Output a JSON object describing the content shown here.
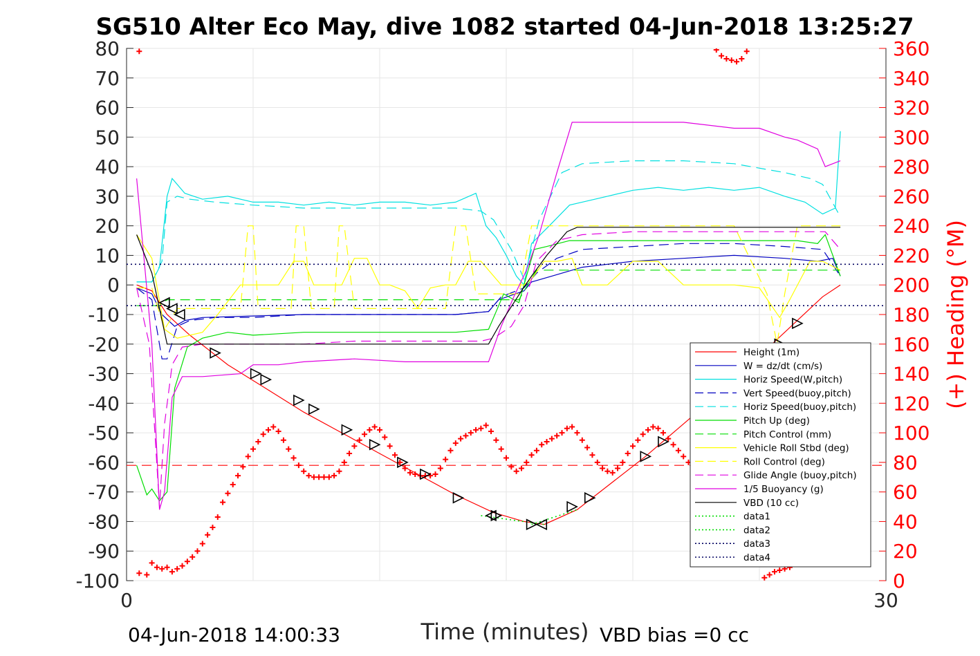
{
  "chart_data": {
    "type": "line",
    "title": "SG510 Alter Eco May, dive 1082 started 04-Jun-2018 13:25:27",
    "xlabel": "Time (minutes)",
    "ylabel_right": "(+) Heading (°M)",
    "footer_left": "04-Jun-2018 14:00:33",
    "footer_right": "VBD bias =0 cc",
    "xlim": [
      0,
      30
    ],
    "ylim": [
      -100,
      80
    ],
    "ylim_right": [
      0,
      360
    ],
    "x_ticks": [
      "0",
      "30"
    ],
    "y_ticks": [
      "80",
      "70",
      "60",
      "50",
      "40",
      "30",
      "20",
      "10",
      "0",
      "-10",
      "-20",
      "-30",
      "-40",
      "-50",
      "-60",
      "-70",
      "-80",
      "-90",
      "-100"
    ],
    "y_ticks_right": [
      "360",
      "340",
      "320",
      "300",
      "280",
      "260",
      "240",
      "220",
      "200",
      "180",
      "160",
      "140",
      "120",
      "100",
      "80",
      "60",
      "40",
      "20",
      "0"
    ],
    "grid": true,
    "legend_position": "bottom-right",
    "colors": {
      "height": "#ff0000",
      "w": "#0000c0",
      "horiz": "#00e0e0",
      "pitch": "#00dd00",
      "roll": "#ffff00",
      "glide": "#e000e0",
      "vbd": "#000000",
      "heading": "#ff0000"
    },
    "series": [
      {
        "name": "Height (1m)",
        "color": "#ff0000",
        "style": "solid",
        "x": [
          0.4,
          1.0,
          1.6,
          2.5,
          4,
          5.5,
          7,
          8.5,
          10,
          11.5,
          13,
          14.5,
          15.7,
          16.5,
          17.8,
          19,
          20.5,
          22,
          23.5,
          25,
          26.5,
          27.5,
          28.2
        ],
        "y": [
          0,
          -2,
          -10,
          -17,
          -27,
          -35,
          -43,
          -50,
          -57,
          -64,
          -71,
          -77,
          -80,
          -81,
          -76,
          -68,
          -58,
          -47,
          -36,
          -24,
          -12,
          -4,
          0
        ]
      },
      {
        "name": "W = dz/dt (cm/s)",
        "color": "#0000c0",
        "style": "solid",
        "x": [
          0.4,
          1.0,
          1.4,
          1.9,
          2.3,
          3,
          5,
          7,
          9,
          11,
          13,
          14.3,
          14.7,
          15.7,
          16,
          16.8,
          18,
          20,
          22,
          24,
          26,
          27.3,
          27.9,
          28.2
        ],
        "y": [
          -1,
          -3,
          -10,
          -14,
          -12,
          -11,
          -10.5,
          -10,
          -10,
          -10,
          -10,
          -9,
          -5,
          -2,
          1,
          3,
          6,
          8,
          9,
          10,
          9,
          8,
          9,
          3
        ]
      },
      {
        "name": "Horiz Speed(W,pitch)",
        "color": "#00e0e0",
        "style": "solid",
        "x": [
          0.4,
          1.0,
          1.3,
          1.6,
          1.8,
          2.3,
          3,
          4,
          5,
          6,
          7,
          8,
          9,
          10,
          11,
          12,
          13,
          13.8,
          14.2,
          14.6,
          15,
          15.4,
          15.7,
          16,
          16.7,
          17.5,
          18,
          19,
          20,
          21,
          22,
          23,
          24,
          25,
          26,
          26.8,
          27.5,
          28,
          28.2
        ],
        "y": [
          1,
          1,
          6,
          30,
          36,
          31,
          29,
          30,
          28,
          28,
          27,
          28,
          27,
          28,
          28,
          27,
          28,
          31,
          20,
          16,
          10,
          3,
          0,
          14,
          20,
          27,
          28,
          30,
          32,
          33,
          32,
          33,
          32,
          33,
          30,
          28,
          24,
          26,
          52
        ]
      },
      {
        "name": "Vert Speed(buoy,pitch)",
        "color": "#0000c0",
        "style": "dashed",
        "x": [
          0.4,
          1.0,
          1.4,
          1.6,
          2.0,
          2.5,
          3.5,
          5,
          7,
          9,
          11,
          13,
          14.3,
          14.8,
          15.7,
          16.2,
          17,
          18,
          20,
          22,
          24,
          26,
          27.5,
          28.2
        ],
        "y": [
          -1,
          -5,
          -25,
          -25,
          -14,
          -12,
          -11,
          -11,
          -10,
          -10,
          -10,
          -10,
          -9,
          -4,
          -1,
          4,
          9,
          12,
          13,
          14,
          14,
          13,
          12,
          3
        ]
      },
      {
        "name": "Horiz Speed(buoy,pitch)",
        "color": "#00e0e0",
        "style": "dashed",
        "x": [
          0.4,
          1.0,
          1.4,
          1.6,
          2.0,
          2.5,
          3.5,
          5,
          7,
          9,
          11,
          13,
          14,
          14.5,
          15.2,
          15.7,
          16.3,
          17.2,
          18,
          20,
          22,
          24,
          26,
          27,
          27.5,
          28.2
        ],
        "y": [
          1,
          1,
          8,
          28,
          30,
          29,
          28,
          27,
          26,
          26,
          26,
          26,
          25,
          22,
          12,
          2,
          22,
          38,
          41,
          42,
          42,
          41,
          38,
          36,
          34,
          23
        ]
      },
      {
        "name": "Pitch Up (deg)",
        "color": "#00dd00",
        "style": "solid",
        "x": [
          0.4,
          0.8,
          1.0,
          1.3,
          1.6,
          1.9,
          2.4,
          3,
          4,
          5,
          7,
          9,
          11,
          13,
          14.3,
          14.6,
          14.9,
          15.5,
          16.1,
          16.6,
          17.5,
          19,
          21,
          23,
          25,
          26.5,
          27.3,
          27.6,
          28.2
        ],
        "y": [
          -61,
          -71,
          -69,
          -73,
          -70,
          -35,
          -21,
          -18,
          -16,
          -17,
          -16,
          -16,
          -16,
          -16,
          -15,
          -9,
          -3,
          -6,
          12,
          13,
          15,
          15,
          15,
          15,
          15,
          15,
          14,
          17,
          3
        ]
      },
      {
        "name": "Pitch Control (mm)",
        "color": "#00dd00",
        "style": "dashed",
        "x": [
          0.4,
          1.3,
          1.6,
          14.8,
          15.5,
          16.2,
          28.2
        ],
        "y": [
          -7,
          -7,
          -5,
          -5,
          -5,
          5,
          5
        ]
      },
      {
        "name": "Vehicle Roll Stbd (deg)",
        "color": "#ffff00",
        "style": "solid",
        "x": [
          0.4,
          1.0,
          1.5,
          2.0,
          3,
          3.6,
          4.5,
          5.5,
          6,
          6.6,
          7,
          7.4,
          8,
          8.5,
          9,
          9.5,
          10,
          10.4,
          11,
          11.5,
          12,
          12.6,
          13,
          13.5,
          14,
          14.8,
          15.7,
          16,
          16.5,
          17,
          17.6,
          18,
          19,
          20,
          21,
          22,
          23,
          24,
          25,
          25.8,
          26.2,
          27,
          27.5,
          28.2
        ],
        "y": [
          17,
          9,
          -15,
          -18,
          -16,
          -10,
          0,
          0,
          0,
          8,
          8,
          0,
          0,
          0,
          9,
          9,
          0,
          0,
          -2,
          -8,
          -1,
          0,
          0,
          8,
          8,
          0,
          0,
          2,
          8,
          8,
          9,
          0,
          0,
          8,
          8,
          0,
          0,
          0,
          -1,
          -11,
          -5,
          8,
          8,
          5
        ]
      },
      {
        "name": "Roll Control (deg)",
        "color": "#ffff00",
        "style": "dashed",
        "x": [
          0.4,
          1.0,
          1.5,
          2.0,
          4.5,
          4.8,
          5,
          5.2,
          5.5,
          6.5,
          6.7,
          7,
          7.3,
          7.6,
          8.2,
          8.4,
          8.6,
          9,
          10,
          10.4,
          11,
          11.5,
          12,
          12.6,
          13,
          13.4,
          13.8,
          14,
          14.8,
          15.5,
          16,
          16.6,
          17,
          18,
          19,
          20,
          22,
          24,
          25.3,
          25.7,
          26,
          26.5,
          27,
          28.2
        ],
        "y": [
          -1,
          -1,
          -15,
          -8,
          -8,
          20,
          20,
          -8,
          -8,
          -8,
          20,
          20,
          -8,
          -8,
          -8,
          20,
          20,
          -8,
          -8,
          -8,
          -8,
          -8,
          -8,
          -8,
          20,
          20,
          -3,
          -3,
          -3,
          -3,
          20,
          20,
          20,
          20,
          20,
          20,
          20,
          20,
          -3,
          -20,
          -3,
          20,
          20,
          20
        ]
      },
      {
        "name": "Glide Angle (buoy,pitch)",
        "color": "#e000e0",
        "style": "dashed",
        "x": [
          0.4,
          0.9,
          1.3,
          1.5,
          1.8,
          2.2,
          3,
          5,
          7,
          9,
          11,
          13,
          14,
          14.5,
          15.2,
          15.7,
          16.2,
          17,
          18,
          20,
          22,
          24,
          26,
          27.6,
          28.2
        ],
        "y": [
          -1,
          -20,
          -75,
          -47,
          -27,
          -21,
          -20,
          -20,
          -20,
          -19,
          -19,
          -19,
          -19,
          -18,
          -14,
          -7,
          8,
          15,
          17,
          18,
          18,
          18,
          18,
          18,
          12
        ]
      },
      {
        "name": "1/5 Buoyancy (g)",
        "color": "#e000e0",
        "style": "solid",
        "x": [
          0.4,
          1.0,
          1.3,
          1.5,
          1.8,
          2.2,
          3,
          4.5,
          5,
          6,
          7,
          9,
          11,
          13,
          14.3,
          14.8,
          15.3,
          15.8,
          16.3,
          17,
          17.6,
          18,
          20,
          22,
          24,
          25,
          26,
          26.5,
          27.3,
          27.6,
          28.2
        ],
        "y": [
          36,
          -20,
          -76,
          -70,
          -38,
          -31,
          -31,
          -30,
          -27,
          -27,
          -26,
          -25,
          -26,
          -26,
          -26,
          -14,
          -4,
          5,
          17,
          38,
          55,
          55,
          55,
          55,
          53,
          53,
          50,
          49,
          46,
          40,
          42
        ]
      },
      {
        "name": "VBD (10 cc)",
        "color": "#000000",
        "style": "solid",
        "x": [
          0.4,
          1.0,
          1.3,
          1.6,
          14.3,
          14.7,
          15.6,
          16,
          16.6,
          17.4,
          17.8,
          18,
          28.2
        ],
        "y": [
          17,
          4,
          -8,
          -20,
          -20,
          -14,
          -2,
          3,
          10,
          18,
          19.5,
          19.5,
          19.5
        ]
      },
      {
        "name": "data1",
        "color": "#00dd00",
        "style": "dotted",
        "x": [
          14,
          16.5
        ],
        "y": [
          -78,
          -81
        ]
      },
      {
        "name": "data2",
        "color": "#00dd00",
        "style": "dotted",
        "x": [
          16,
          17.8
        ],
        "y": [
          -81,
          -76
        ]
      },
      {
        "name": "data3",
        "color": "#000060",
        "style": "dotted",
        "x": [
          0,
          30
        ],
        "y": [
          7,
          7
        ]
      },
      {
        "name": "data4",
        "color": "#000060",
        "style": "dotted",
        "x": [
          0,
          30
        ],
        "y": [
          -7,
          -7
        ]
      }
    ],
    "reference_lines": [
      {
        "color": "#ff0000",
        "style": "dashed",
        "y": -61
      }
    ],
    "triangle_markers": {
      "left": [
        [
          1.5,
          -6
        ],
        [
          1.8,
          -8
        ],
        [
          2.1,
          -10
        ],
        [
          14.4,
          -78
        ],
        [
          16.4,
          -81
        ]
      ],
      "right": [
        [
          3.5,
          -23
        ],
        [
          5.1,
          -30
        ],
        [
          5.5,
          -32
        ],
        [
          6.8,
          -39
        ],
        [
          7.4,
          -42
        ],
        [
          8.7,
          -49
        ],
        [
          9.8,
          -54
        ],
        [
          10.9,
          -60
        ],
        [
          11.8,
          -64
        ],
        [
          13.1,
          -72
        ],
        [
          14.6,
          -78
        ],
        [
          16.0,
          -81
        ],
        [
          17.6,
          -75
        ],
        [
          18.3,
          -72
        ],
        [
          20.5,
          -58
        ],
        [
          21.2,
          -53
        ],
        [
          24,
          -39
        ],
        [
          26.5,
          -13
        ],
        [
          25,
          -31
        ],
        [
          25.8,
          -20
        ]
      ]
    },
    "heading_series": {
      "axis": "right",
      "color": "#ff0000",
      "marker": "+",
      "x": [
        0.5,
        0.8,
        1.0,
        1.2,
        1.4,
        1.6,
        1.8,
        2.0,
        2.2,
        2.4,
        2.6,
        2.8,
        3.0,
        3.2,
        3.4,
        3.6,
        3.8,
        4.0,
        4.2,
        4.4,
        4.6,
        4.8,
        5.0,
        5.2,
        5.4,
        5.6,
        5.8,
        6.0,
        6.2,
        6.4,
        6.6,
        6.8,
        7.0,
        7.2,
        7.4,
        7.6,
        7.8,
        8.0,
        8.2,
        8.4,
        8.6,
        8.8,
        9.0,
        9.2,
        9.4,
        9.6,
        9.8,
        10.0,
        10.2,
        10.4,
        10.6,
        10.8,
        11.0,
        11.2,
        11.4,
        11.6,
        11.8,
        12.0,
        12.2,
        12.4,
        12.6,
        12.8,
        13.0,
        13.2,
        13.4,
        13.6,
        13.8,
        14.0,
        14.2,
        14.4,
        14.6,
        14.8,
        15.0,
        15.2,
        15.4,
        15.6,
        15.8,
        16.0,
        16.2,
        16.4,
        16.6,
        16.8,
        17.0,
        17.2,
        17.4,
        17.6,
        17.8,
        18.0,
        18.2,
        18.4,
        18.6,
        18.8,
        19.0,
        19.2,
        19.4,
        19.6,
        19.8,
        20.0,
        20.2,
        20.4,
        20.6,
        20.8,
        21.0,
        21.2,
        21.4,
        21.6,
        21.8,
        22.0,
        22.2,
        22.4,
        22.6,
        22.8,
        23.0,
        23.2,
        23.4,
        23.6,
        23.8,
        24.0,
        24.2,
        24.4,
        24.6,
        24.8,
        25.0,
        25.2,
        25.4,
        25.6,
        25.8,
        26.0,
        26.2,
        26.4,
        26.6,
        26.8,
        27.0,
        27.2,
        27.4,
        27.6,
        27.8,
        28.0
      ],
      "y": [
        5,
        4,
        12,
        9,
        8,
        9,
        6,
        8,
        10,
        13,
        16,
        20,
        25,
        31,
        36,
        43,
        53,
        59,
        65,
        71,
        77,
        84,
        89,
        94,
        99,
        102,
        104,
        101,
        95,
        89,
        83,
        78,
        74,
        71,
        70,
        70,
        70,
        70,
        71,
        74,
        80,
        86,
        91,
        95,
        99,
        102,
        104,
        102,
        97,
        91,
        85,
        80,
        76,
        73,
        72,
        71,
        71,
        71,
        72,
        76,
        82,
        88,
        93,
        96,
        98,
        100,
        102,
        103,
        105,
        101,
        95,
        89,
        83,
        77,
        74,
        76,
        80,
        85,
        88,
        92,
        94,
        96,
        98,
        100,
        103,
        104,
        100,
        95,
        90,
        85,
        80,
        76,
        74,
        73,
        76,
        80,
        86,
        91,
        95,
        99,
        102,
        104,
        103,
        100,
        96,
        92,
        88,
        84,
        80,
        76,
        73,
        70,
        71,
        74,
        78,
        82,
        86,
        90,
        93,
        96,
        99,
        102,
        104,
        104,
        100,
        96,
        91,
        87,
        84,
        82,
        82,
        83,
        84,
        85,
        86,
        87,
        88,
        89
      ]
    },
    "heading_wrap_points": {
      "top_x": [
        0.5,
        23.3,
        23.5,
        23.7,
        23.9,
        24.1,
        24.3,
        24.5
      ],
      "top_y": [
        358,
        359,
        355,
        353,
        352,
        351,
        353,
        358
      ],
      "bottom_x": [
        25.2,
        25.4,
        25.6,
        25.8,
        26.0,
        26.2
      ],
      "bottom_y": [
        2,
        4,
        6,
        7,
        8,
        9
      ]
    }
  }
}
